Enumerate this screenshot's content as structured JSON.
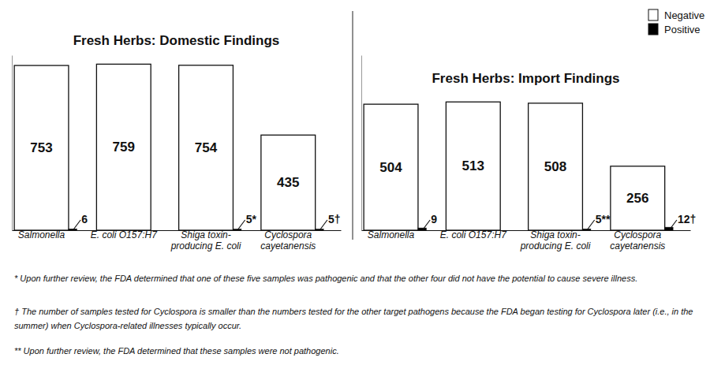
{
  "chart_data": [
    {
      "type": "bar",
      "title": "Fresh Herbs: Domestic Findings",
      "categories": [
        "Salmonella",
        "E. coli O157:H7",
        "Shiga toxin-producing E. coli",
        "Cyclospora cayetanensis"
      ],
      "series": [
        {
          "name": "Negative",
          "color": "#ffffff",
          "values": [
            753,
            759,
            754,
            435
          ]
        },
        {
          "name": "Positive",
          "color": "#000000",
          "values": [
            6,
            null,
            5,
            5
          ],
          "value_labels": [
            "6",
            null,
            "5*",
            "5†"
          ]
        }
      ],
      "ylim": [
        0,
        800
      ],
      "data_labels": true,
      "tick_labels": "x"
    },
    {
      "type": "bar",
      "title": "Fresh Herbs: Import Findings",
      "categories": [
        "Salmonella",
        "E. coli O157:H7",
        "Shiga toxin-producing E. coli",
        "Cyclospora cayetanensis"
      ],
      "series": [
        {
          "name": "Negative",
          "color": "#ffffff",
          "values": [
            504,
            513,
            508,
            256
          ]
        },
        {
          "name": "Positive",
          "color": "#000000",
          "values": [
            9,
            null,
            5,
            12
          ],
          "value_labels": [
            "9",
            null,
            "5**",
            "12†"
          ]
        }
      ],
      "ylim": [
        0,
        700
      ],
      "data_labels": true,
      "tick_labels": "x",
      "legend": "upper right"
    }
  ],
  "footnotes": [
    "* Upon further review, the FDA determined that one of these five samples was pathogenic and that the other four did not have the potential to cause severe illness.",
    "† The number of samples tested for Cyclospora is smaller than the numbers tested for the other target pathogens because the FDA began testing for Cyclospora later (i.e., in the summer) when Cyclospora-related illnesses typically occur.",
    "** Upon further review, the FDA determined that these samples were not pathogenic."
  ]
}
